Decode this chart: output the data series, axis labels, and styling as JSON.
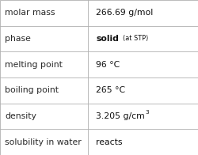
{
  "rows": [
    {
      "label": "molar mass",
      "value": "266.69 g/mol",
      "type": "plain"
    },
    {
      "label": "phase",
      "value": "solid",
      "type": "sub",
      "main": "solid",
      "sub": " (at STP)"
    },
    {
      "label": "melting point",
      "value": "96 °C",
      "type": "plain"
    },
    {
      "label": "boiling point",
      "value": "265 °C",
      "type": "plain"
    },
    {
      "label": "density",
      "value": "3.205 g/cm³",
      "type": "super",
      "main": "3.205 g/cm",
      "super": "3"
    },
    {
      "label": "solubility in water",
      "value": "reacts",
      "type": "plain"
    }
  ],
  "col_split": 0.445,
  "bg_color": "#ffffff",
  "border_color": "#b0b0b0",
  "label_font_size": 7.8,
  "value_font_size": 7.8,
  "label_color": "#282828",
  "value_color": "#101010",
  "fig_width": 2.5,
  "fig_height": 1.96,
  "dpi": 100
}
